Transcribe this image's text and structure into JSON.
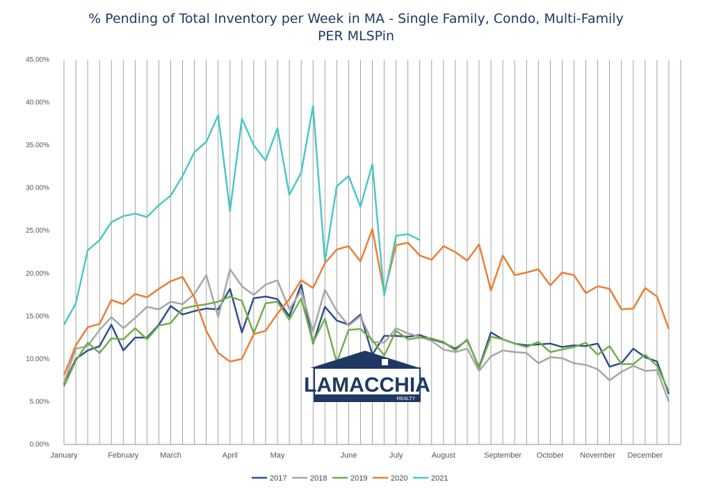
{
  "title_line1": "% Pending of Total Inventory per Week in MA - Single Family, Condo, Multi-Family",
  "title_line2": "PER MLSPin",
  "logo": {
    "name": "LAMACCHIA",
    "sub": "REALTY",
    "color": "#1f3864"
  },
  "chart_data": {
    "type": "line",
    "title": "% Pending of Total Inventory per Week in MA - Single Family, Condo, Multi-Family PER MLSPin",
    "ylim": [
      0,
      45
    ],
    "y_ticks": [
      "0.00%",
      "5.00%",
      "10.00%",
      "15.00%",
      "20.00%",
      "25.00%",
      "30.00%",
      "35.00%",
      "40.00%",
      "45.00%"
    ],
    "weeks": 53,
    "months": [
      {
        "label": "January",
        "week": 0
      },
      {
        "label": "February",
        "week": 5
      },
      {
        "label": "March",
        "week": 9
      },
      {
        "label": "April",
        "week": 14
      },
      {
        "label": "May",
        "week": 18
      },
      {
        "label": "June",
        "week": 24
      },
      {
        "label": "July",
        "week": 28
      },
      {
        "label": "August",
        "week": 32
      },
      {
        "label": "September",
        "week": 37
      },
      {
        "label": "October",
        "week": 41
      },
      {
        "label": "November",
        "week": 45
      },
      {
        "label": "December",
        "week": 49
      }
    ],
    "grid": "vertical",
    "legend_position": "bottom",
    "series": [
      {
        "name": "2017",
        "color": "#2e4e8f",
        "values": [
          7.0,
          10.0,
          11.0,
          11.5,
          14.0,
          11.0,
          12.5,
          12.5,
          14.0,
          16.2,
          15.2,
          15.6,
          15.9,
          15.8,
          18.2,
          13.1,
          17.1,
          17.3,
          17.0,
          15.0,
          18.7,
          11.8,
          16.1,
          14.5,
          14.0,
          15.2,
          10.5,
          12.7,
          12.7,
          12.6,
          12.8,
          12.3,
          11.9,
          11.2,
          12.2,
          9.0,
          13.1,
          12.3,
          11.8,
          11.6,
          11.7,
          11.8,
          11.4,
          11.6,
          11.5,
          11.8,
          9.1,
          9.5,
          11.2,
          10.2,
          9.7,
          5.9
        ]
      },
      {
        "name": "2018",
        "color": "#a6a6a6",
        "values": [
          7.2,
          11.2,
          11.5,
          13.4,
          14.9,
          13.6,
          14.8,
          16.1,
          15.8,
          16.7,
          16.4,
          17.6,
          19.8,
          14.9,
          20.5,
          18.5,
          17.5,
          18.7,
          19.2,
          15.8,
          18.0,
          13.2,
          18.1,
          15.6,
          13.9,
          15.0,
          12.0,
          11.9,
          13.6,
          13.0,
          12.6,
          12.1,
          11.1,
          10.8,
          11.2,
          8.6,
          10.3,
          11.0,
          10.8,
          10.7,
          9.5,
          10.2,
          10.1,
          9.5,
          9.3,
          8.8,
          7.5,
          8.5,
          9.2,
          8.6,
          8.7,
          5.0
        ]
      },
      {
        "name": "2019",
        "color": "#70ad47",
        "values": [
          6.8,
          9.8,
          11.9,
          10.7,
          12.4,
          12.3,
          13.6,
          12.3,
          13.9,
          14.2,
          15.9,
          16.2,
          16.4,
          16.7,
          17.3,
          16.8,
          13.0,
          16.5,
          16.7,
          14.6,
          17.1,
          11.9,
          14.7,
          9.6,
          13.4,
          13.5,
          12.2,
          10.4,
          13.3,
          12.3,
          12.5,
          12.4,
          12.0,
          11.0,
          12.3,
          8.9,
          12.6,
          12.3,
          11.8,
          11.4,
          12.0,
          10.8,
          11.1,
          11.4,
          11.9,
          10.5,
          11.5,
          9.4,
          9.4,
          10.5,
          9.2,
          6.2
        ]
      },
      {
        "name": "2020",
        "color": "#ed7d31",
        "values": [
          8.1,
          11.6,
          13.7,
          14.1,
          16.9,
          16.4,
          17.6,
          17.2,
          18.2,
          19.1,
          19.6,
          17.2,
          13.3,
          10.7,
          9.7,
          10.0,
          12.9,
          13.3,
          15.3,
          17.0,
          19.2,
          18.3,
          21.2,
          22.8,
          23.2,
          21.4,
          25.2,
          17.7,
          23.3,
          23.6,
          22.1,
          21.6,
          23.2,
          22.5,
          21.5,
          23.4,
          18.0,
          22.1,
          19.8,
          20.1,
          20.5,
          18.6,
          20.1,
          19.8,
          17.7,
          18.5,
          18.2,
          15.8,
          15.9,
          18.3,
          17.3,
          13.5
        ]
      },
      {
        "name": "2021",
        "color": "#4bc7c7",
        "values": [
          14.0,
          16.5,
          22.7,
          23.9,
          26.0,
          26.7,
          27.0,
          26.6,
          28.0,
          29.1,
          31.4,
          34.2,
          35.4,
          38.5,
          27.3,
          38.1,
          35.0,
          33.2,
          37.0,
          29.2,
          31.8,
          39.6,
          21.4,
          30.2,
          31.4,
          27.8,
          32.8,
          17.4,
          24.4,
          24.6,
          23.9
        ]
      }
    ]
  }
}
